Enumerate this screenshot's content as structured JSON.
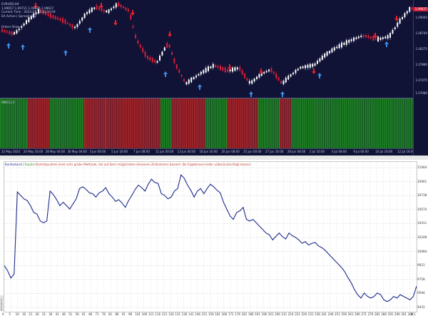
{
  "chart_top": {
    "symbol": "EURUSD,H4",
    "ohlc": "1.09657 1.09711 1.09625 1.09637",
    "current_time": "Current Time : 2024.07.13 23:59:59",
    "ea_status": "EA Active | Spread : 0.2",
    "orders_label": "Orders Show",
    "current_price": "1.09637",
    "price_ticks": [
      "1.09045",
      "1.08740",
      "1.08275",
      "1.07880",
      "1.07475",
      "1.07080"
    ],
    "indicator_label": "MBR(1) 0",
    "time_ticks": [
      "22 May 2024",
      "24 May 16:00",
      "28 May 04:00",
      "30 May 04:00",
      "3 Jun 00:00",
      "5 Jun 16:00",
      "7 Jun 08:00",
      "11 Jun 00:00",
      "13 Jun 00:00",
      "18 Jun 16:00",
      "20 Jun 08:00",
      "25 Jun 00:00",
      "27 Jun 16:00",
      "28 Jun 08:00",
      "2 Jul 16:00",
      "4 Jul 08:00",
      "9 Jul 00:00",
      "10 Jul 16:00",
      "12 Jul 16:00"
    ],
    "colors": {
      "bg": "#101236",
      "bull": "#ffffff",
      "bear": "#d6203a",
      "buy_arrow": "#3b8fe8",
      "sell_arrow": "#e8202a",
      "ind_green": "#1f8f1f",
      "ind_red": "#b52626"
    }
  },
  "legend": {
    "balance": "Kontostand",
    "sep": "/",
    "equity": "Kapita",
    "note": "Kontrollpunkte (eine sehr grobe Methode, die auf dem möglichsten kleineren Zeitrahmen basiert; die Ergebnisse leider unberücksichtigt lassen)"
  },
  "side_label": "Kontostand-Export",
  "chart_data": {
    "type": "line",
    "title": "",
    "xlabel": "",
    "ylabel": "",
    "x_ticks": [
      "0",
      "5",
      "10",
      "16",
      "21",
      "26",
      "31",
      "36",
      "41",
      "46",
      "51",
      "56",
      "61",
      "66",
      "71",
      "76",
      "81",
      "86",
      "91",
      "96",
      "101",
      "106",
      "111",
      "116",
      "121",
      "126",
      "131",
      "136",
      "141",
      "146",
      "151",
      "156",
      "161",
      "166",
      "171",
      "176",
      "181",
      "186",
      "191",
      "196",
      "201",
      "206",
      "211",
      "216",
      "221",
      "226",
      "231",
      "236",
      "241",
      "246",
      "251",
      "256",
      "261",
      "266",
      "271",
      "276",
      "281",
      "286",
      "291",
      "296",
      "301",
      "306",
      "311"
    ],
    "y_ticks": [
      "11064",
      "10901",
      "10738",
      "10574",
      "10411",
      "10248",
      "10084",
      "9921",
      "9758",
      "9594",
      "9431"
    ],
    "ylim": [
      9431,
      11064
    ],
    "xlim": [
      0,
      311
    ],
    "series": [
      {
        "color": "#1c2b8c",
        "values": [
          9921,
          9860,
          9775,
          9820,
          10780,
          10740,
          10700,
          10680,
          10620,
          10540,
          10520,
          10440,
          10420,
          10440,
          10790,
          10750,
          10690,
          10620,
          10660,
          10620,
          10580,
          10640,
          10700,
          10820,
          10840,
          10810,
          10770,
          10760,
          10720,
          10770,
          10790,
          10830,
          10760,
          10720,
          10670,
          10690,
          10650,
          10600,
          10680,
          10740,
          10810,
          10860,
          10830,
          10790,
          10870,
          10930,
          10890,
          10880,
          10760,
          10740,
          10700,
          10720,
          10790,
          10820,
          10980,
          10940,
          10860,
          10800,
          10720,
          10790,
          10820,
          10760,
          10820,
          10870,
          10840,
          10800,
          10770,
          10660,
          10580,
          10500,
          10460,
          10540,
          10560,
          10600,
          10460,
          10440,
          10460,
          10420,
          10380,
          10340,
          10300,
          10280,
          10220,
          10260,
          10300,
          10260,
          10230,
          10300,
          10270,
          10250,
          10220,
          10180,
          10200,
          10160,
          10180,
          10190,
          10150,
          10130,
          10100,
          10060,
          10020,
          9980,
          9940,
          9900,
          9850,
          9780,
          9720,
          9640,
          9580,
          9540,
          9600,
          9560,
          9540,
          9560,
          9600,
          9580,
          9520,
          9500,
          9520,
          9560,
          9540,
          9580,
          9560,
          9540,
          9520,
          9560,
          9680
        ]
      }
    ]
  }
}
